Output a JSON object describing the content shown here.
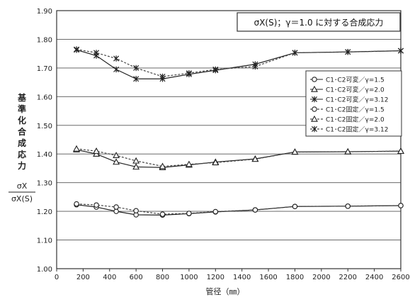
{
  "chart_data": {
    "type": "line",
    "title": "σX(S)；γ＝1.0 に対する合成応力",
    "xlabel": "管径（㎜）",
    "ylabel_chars": [
      "基",
      "準",
      "化",
      "合",
      "成",
      "応",
      "力"
    ],
    "ylabel_fraction": {
      "numerator": "σX",
      "denominator": "σX(S)"
    },
    "xlim": [
      0,
      2600
    ],
    "ylim": [
      1.0,
      1.9
    ],
    "x_ticks": [
      "0",
      "200",
      "400",
      "600",
      "800",
      "1000",
      "1200",
      "1400",
      "1600",
      "1800",
      "2000",
      "2200",
      "2400",
      "2600"
    ],
    "y_ticks": [
      "1.00",
      "1.10",
      "1.20",
      "1.30",
      "1.40",
      "1.50",
      "1.60",
      "1.70",
      "1.80",
      "1.90"
    ],
    "grid": "horizontal",
    "legend_position": "right",
    "x": [
      150,
      300,
      450,
      600,
      800,
      1000,
      1200,
      1500,
      1800,
      2200,
      2600
    ],
    "series": [
      {
        "name": "C1･C2可変／γ=1.5",
        "marker": "circle",
        "dash": "solid",
        "values": [
          1.223,
          1.215,
          1.2,
          1.188,
          1.187,
          1.192,
          1.198,
          1.205,
          1.217,
          1.218,
          1.22
        ]
      },
      {
        "name": "C1･C2可変／γ=2.0",
        "marker": "triangle",
        "dash": "solid",
        "values": [
          1.415,
          1.4,
          1.372,
          1.355,
          1.353,
          1.362,
          1.372,
          1.383,
          1.407,
          1.408,
          1.41
        ]
      },
      {
        "name": "C1･C2可変／γ=3.12",
        "marker": "star",
        "dash": "solid",
        "values": [
          1.763,
          1.743,
          1.695,
          1.662,
          1.662,
          1.678,
          1.692,
          1.713,
          1.753,
          1.756,
          1.76
        ]
      },
      {
        "name": "C1･C2固定／γ=1.5",
        "marker": "circle",
        "dash": "dashed",
        "values": [
          1.226,
          1.222,
          1.215,
          1.202,
          1.19,
          1.193,
          1.199,
          1.205,
          1.217,
          1.218,
          1.22
        ]
      },
      {
        "name": "C1･C2固定／γ=2.0",
        "marker": "triangle",
        "dash": "dashed",
        "values": [
          1.418,
          1.41,
          1.395,
          1.376,
          1.357,
          1.364,
          1.37,
          1.382,
          1.407,
          1.408,
          1.41
        ]
      },
      {
        "name": "C1･C2固定／γ=3.12",
        "marker": "star",
        "dash": "dashed",
        "values": [
          1.765,
          1.753,
          1.733,
          1.7,
          1.67,
          1.682,
          1.695,
          1.705,
          1.753,
          1.756,
          1.76
        ]
      }
    ]
  }
}
